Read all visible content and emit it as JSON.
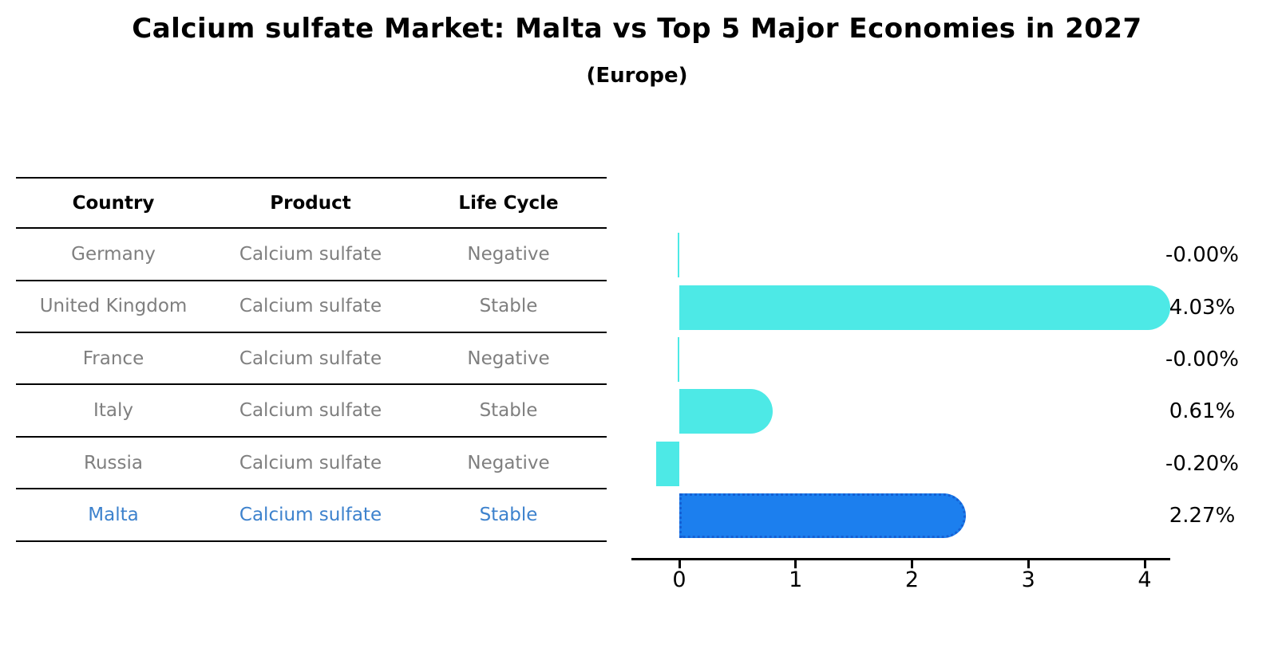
{
  "title": "Calcium sulfate Market: Malta vs Top 5 Major Economies in 2027",
  "subtitle": "(Europe)",
  "table": {
    "headers": [
      "Country",
      "Product",
      "Life Cycle"
    ],
    "rows": [
      {
        "country": "Germany",
        "product": "Calcium sulfate",
        "life_cycle": "Negative",
        "highlight": false
      },
      {
        "country": "United Kingdom",
        "product": "Calcium sulfate",
        "life_cycle": "Stable",
        "highlight": false
      },
      {
        "country": "France",
        "product": "Calcium sulfate",
        "life_cycle": "Negative",
        "highlight": false
      },
      {
        "country": "Italy",
        "product": "Calcium sulfate",
        "life_cycle": "Stable",
        "highlight": false
      },
      {
        "country": "Russia",
        "product": "Calcium sulfate",
        "life_cycle": "Negative",
        "highlight": false
      },
      {
        "country": "Malta",
        "product": "Calcium sulfate",
        "life_cycle": "Stable",
        "highlight": true
      }
    ]
  },
  "chart_data": {
    "type": "bar",
    "orientation": "horizontal",
    "title": "Calcium sulfate Market: Malta vs Top 5 Major Economies in 2027",
    "subtitle": "(Europe)",
    "categories": [
      "Germany",
      "United Kingdom",
      "France",
      "Italy",
      "Russia",
      "Malta"
    ],
    "values": [
      -0.0,
      4.03,
      -0.0,
      0.61,
      -0.2,
      2.27
    ],
    "value_labels": [
      "-0.00%",
      "4.03%",
      "-0.00%",
      "0.61%",
      "-0.20%",
      "2.27%"
    ],
    "highlight_country": "Malta",
    "xticks": [
      0,
      1,
      2,
      3,
      4
    ],
    "xlim": [
      -0.41,
      4.22
    ],
    "grid": false,
    "legend": false,
    "colors": {
      "bar_default": "#4DE9E6",
      "bar_highlight": "#1C7FEE",
      "bar_highlight_border": "#1560D4",
      "row_text": "#7F7F7F",
      "highlight_text": "#3D82CD",
      "text": "#000000"
    }
  }
}
